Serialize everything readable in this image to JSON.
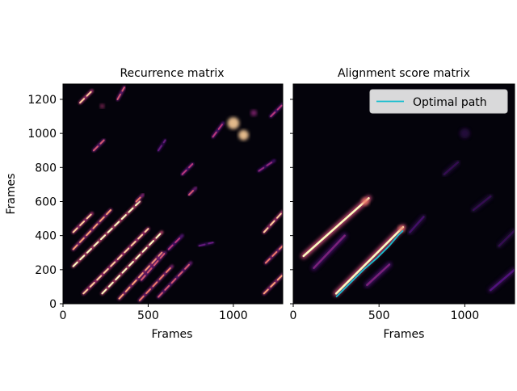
{
  "colors": {
    "background": "#04030b",
    "path": "#17becf",
    "colormap": "magma"
  },
  "chart_data": [
    {
      "type": "heatmap",
      "title": "Recurrence matrix",
      "xlabel": "Frames",
      "ylabel": "Frames",
      "xlim": [
        0,
        1290
      ],
      "ylim": [
        0,
        1290
      ],
      "xticks": [
        0,
        500,
        1000
      ],
      "yticks": [
        0,
        200,
        400,
        600,
        800,
        1000,
        1200
      ],
      "segments": [
        {
          "x0": 60,
          "y0": 220,
          "x1": 450,
          "y1": 600,
          "v": 1.0
        },
        {
          "x0": 120,
          "y0": 60,
          "x1": 500,
          "y1": 440,
          "v": 0.9
        },
        {
          "x0": 230,
          "y0": 60,
          "x1": 580,
          "y1": 420,
          "v": 1.0
        },
        {
          "x0": 60,
          "y0": 420,
          "x1": 170,
          "y1": 530,
          "v": 0.9
        },
        {
          "x0": 330,
          "y0": 30,
          "x1": 580,
          "y1": 300,
          "v": 0.8
        },
        {
          "x0": 60,
          "y0": 320,
          "x1": 280,
          "y1": 550,
          "v": 0.8
        },
        {
          "x0": 100,
          "y0": 1180,
          "x1": 170,
          "y1": 1250,
          "v": 0.9
        },
        {
          "x0": 450,
          "y0": 20,
          "x1": 640,
          "y1": 220,
          "v": 0.7
        },
        {
          "x0": 560,
          "y0": 40,
          "x1": 750,
          "y1": 240,
          "v": 0.6
        },
        {
          "x0": 460,
          "y0": 140,
          "x1": 600,
          "y1": 300,
          "v": 0.6
        },
        {
          "x0": 1180,
          "y0": 420,
          "x1": 1290,
          "y1": 540,
          "v": 0.9
        },
        {
          "x0": 1180,
          "y0": 60,
          "x1": 1290,
          "y1": 170,
          "v": 0.8
        },
        {
          "x0": 1190,
          "y0": 240,
          "x1": 1290,
          "y1": 340,
          "v": 0.7
        },
        {
          "x0": 1220,
          "y0": 1100,
          "x1": 1290,
          "y1": 1170,
          "v": 0.5
        },
        {
          "x0": 430,
          "y0": 600,
          "x1": 470,
          "y1": 640,
          "v": 0.7
        },
        {
          "x0": 180,
          "y0": 900,
          "x1": 240,
          "y1": 960,
          "v": 0.6
        },
        {
          "x0": 320,
          "y0": 1200,
          "x1": 360,
          "y1": 1270,
          "v": 0.6
        },
        {
          "x0": 700,
          "y0": 760,
          "x1": 760,
          "y1": 820,
          "v": 0.5
        },
        {
          "x0": 740,
          "y0": 640,
          "x1": 780,
          "y1": 680,
          "v": 0.6
        },
        {
          "x0": 620,
          "y0": 320,
          "x1": 700,
          "y1": 400,
          "v": 0.5
        },
        {
          "x0": 880,
          "y0": 980,
          "x1": 940,
          "y1": 1060,
          "v": 0.5
        },
        {
          "x0": 1150,
          "y0": 780,
          "x1": 1240,
          "y1": 840,
          "v": 0.4
        },
        {
          "x0": 560,
          "y0": 900,
          "x1": 600,
          "y1": 960,
          "v": 0.3
        },
        {
          "x0": 800,
          "y0": 340,
          "x1": 880,
          "y1": 360,
          "v": 0.3
        }
      ],
      "blobs": [
        {
          "x": 1000,
          "y": 1060,
          "r": 35,
          "v": 0.9
        },
        {
          "x": 1060,
          "y": 990,
          "r": 30,
          "v": 0.9
        },
        {
          "x": 1120,
          "y": 1120,
          "r": 18,
          "v": 0.4
        },
        {
          "x": 230,
          "y": 1160,
          "r": 12,
          "v": 0.5
        }
      ]
    },
    {
      "type": "heatmap",
      "title": "Alignment score matrix",
      "xlabel": "Frames",
      "ylabel": "",
      "xlim": [
        0,
        1290
      ],
      "ylim": [
        0,
        1290
      ],
      "xticks": [
        0,
        500,
        1000
      ],
      "yticks": [
        0,
        200,
        400,
        600,
        800,
        1000,
        1200
      ],
      "segments": [
        {
          "x0": 60,
          "y0": 280,
          "x1": 440,
          "y1": 620,
          "v": 1.0
        },
        {
          "x0": 250,
          "y0": 60,
          "x1": 640,
          "y1": 450,
          "v": 1.0
        },
        {
          "x0": 120,
          "y0": 210,
          "x1": 300,
          "y1": 400,
          "v": 0.35
        },
        {
          "x0": 430,
          "y0": 110,
          "x1": 560,
          "y1": 230,
          "v": 0.35
        },
        {
          "x0": 680,
          "y0": 420,
          "x1": 760,
          "y1": 510,
          "v": 0.2
        },
        {
          "x0": 1150,
          "y0": 80,
          "x1": 1290,
          "y1": 200,
          "v": 0.25
        },
        {
          "x0": 1050,
          "y0": 550,
          "x1": 1150,
          "y1": 630,
          "v": 0.15
        },
        {
          "x0": 880,
          "y0": 760,
          "x1": 960,
          "y1": 830,
          "v": 0.15
        },
        {
          "x0": 1200,
          "y0": 340,
          "x1": 1290,
          "y1": 430,
          "v": 0.15
        }
      ],
      "blobs": [
        {
          "x": 1000,
          "y": 1000,
          "r": 30,
          "v": 0.12
        },
        {
          "x": 420,
          "y": 600,
          "r": 22,
          "v": 0.7
        },
        {
          "x": 630,
          "y": 440,
          "r": 18,
          "v": 0.7
        }
      ],
      "series": [
        {
          "name": "Optimal path",
          "x": [
            250,
            330,
            410,
            490,
            560,
            610,
            640
          ],
          "y": [
            40,
            120,
            200,
            270,
            340,
            400,
            430
          ]
        }
      ],
      "legend": "top-right"
    }
  ]
}
